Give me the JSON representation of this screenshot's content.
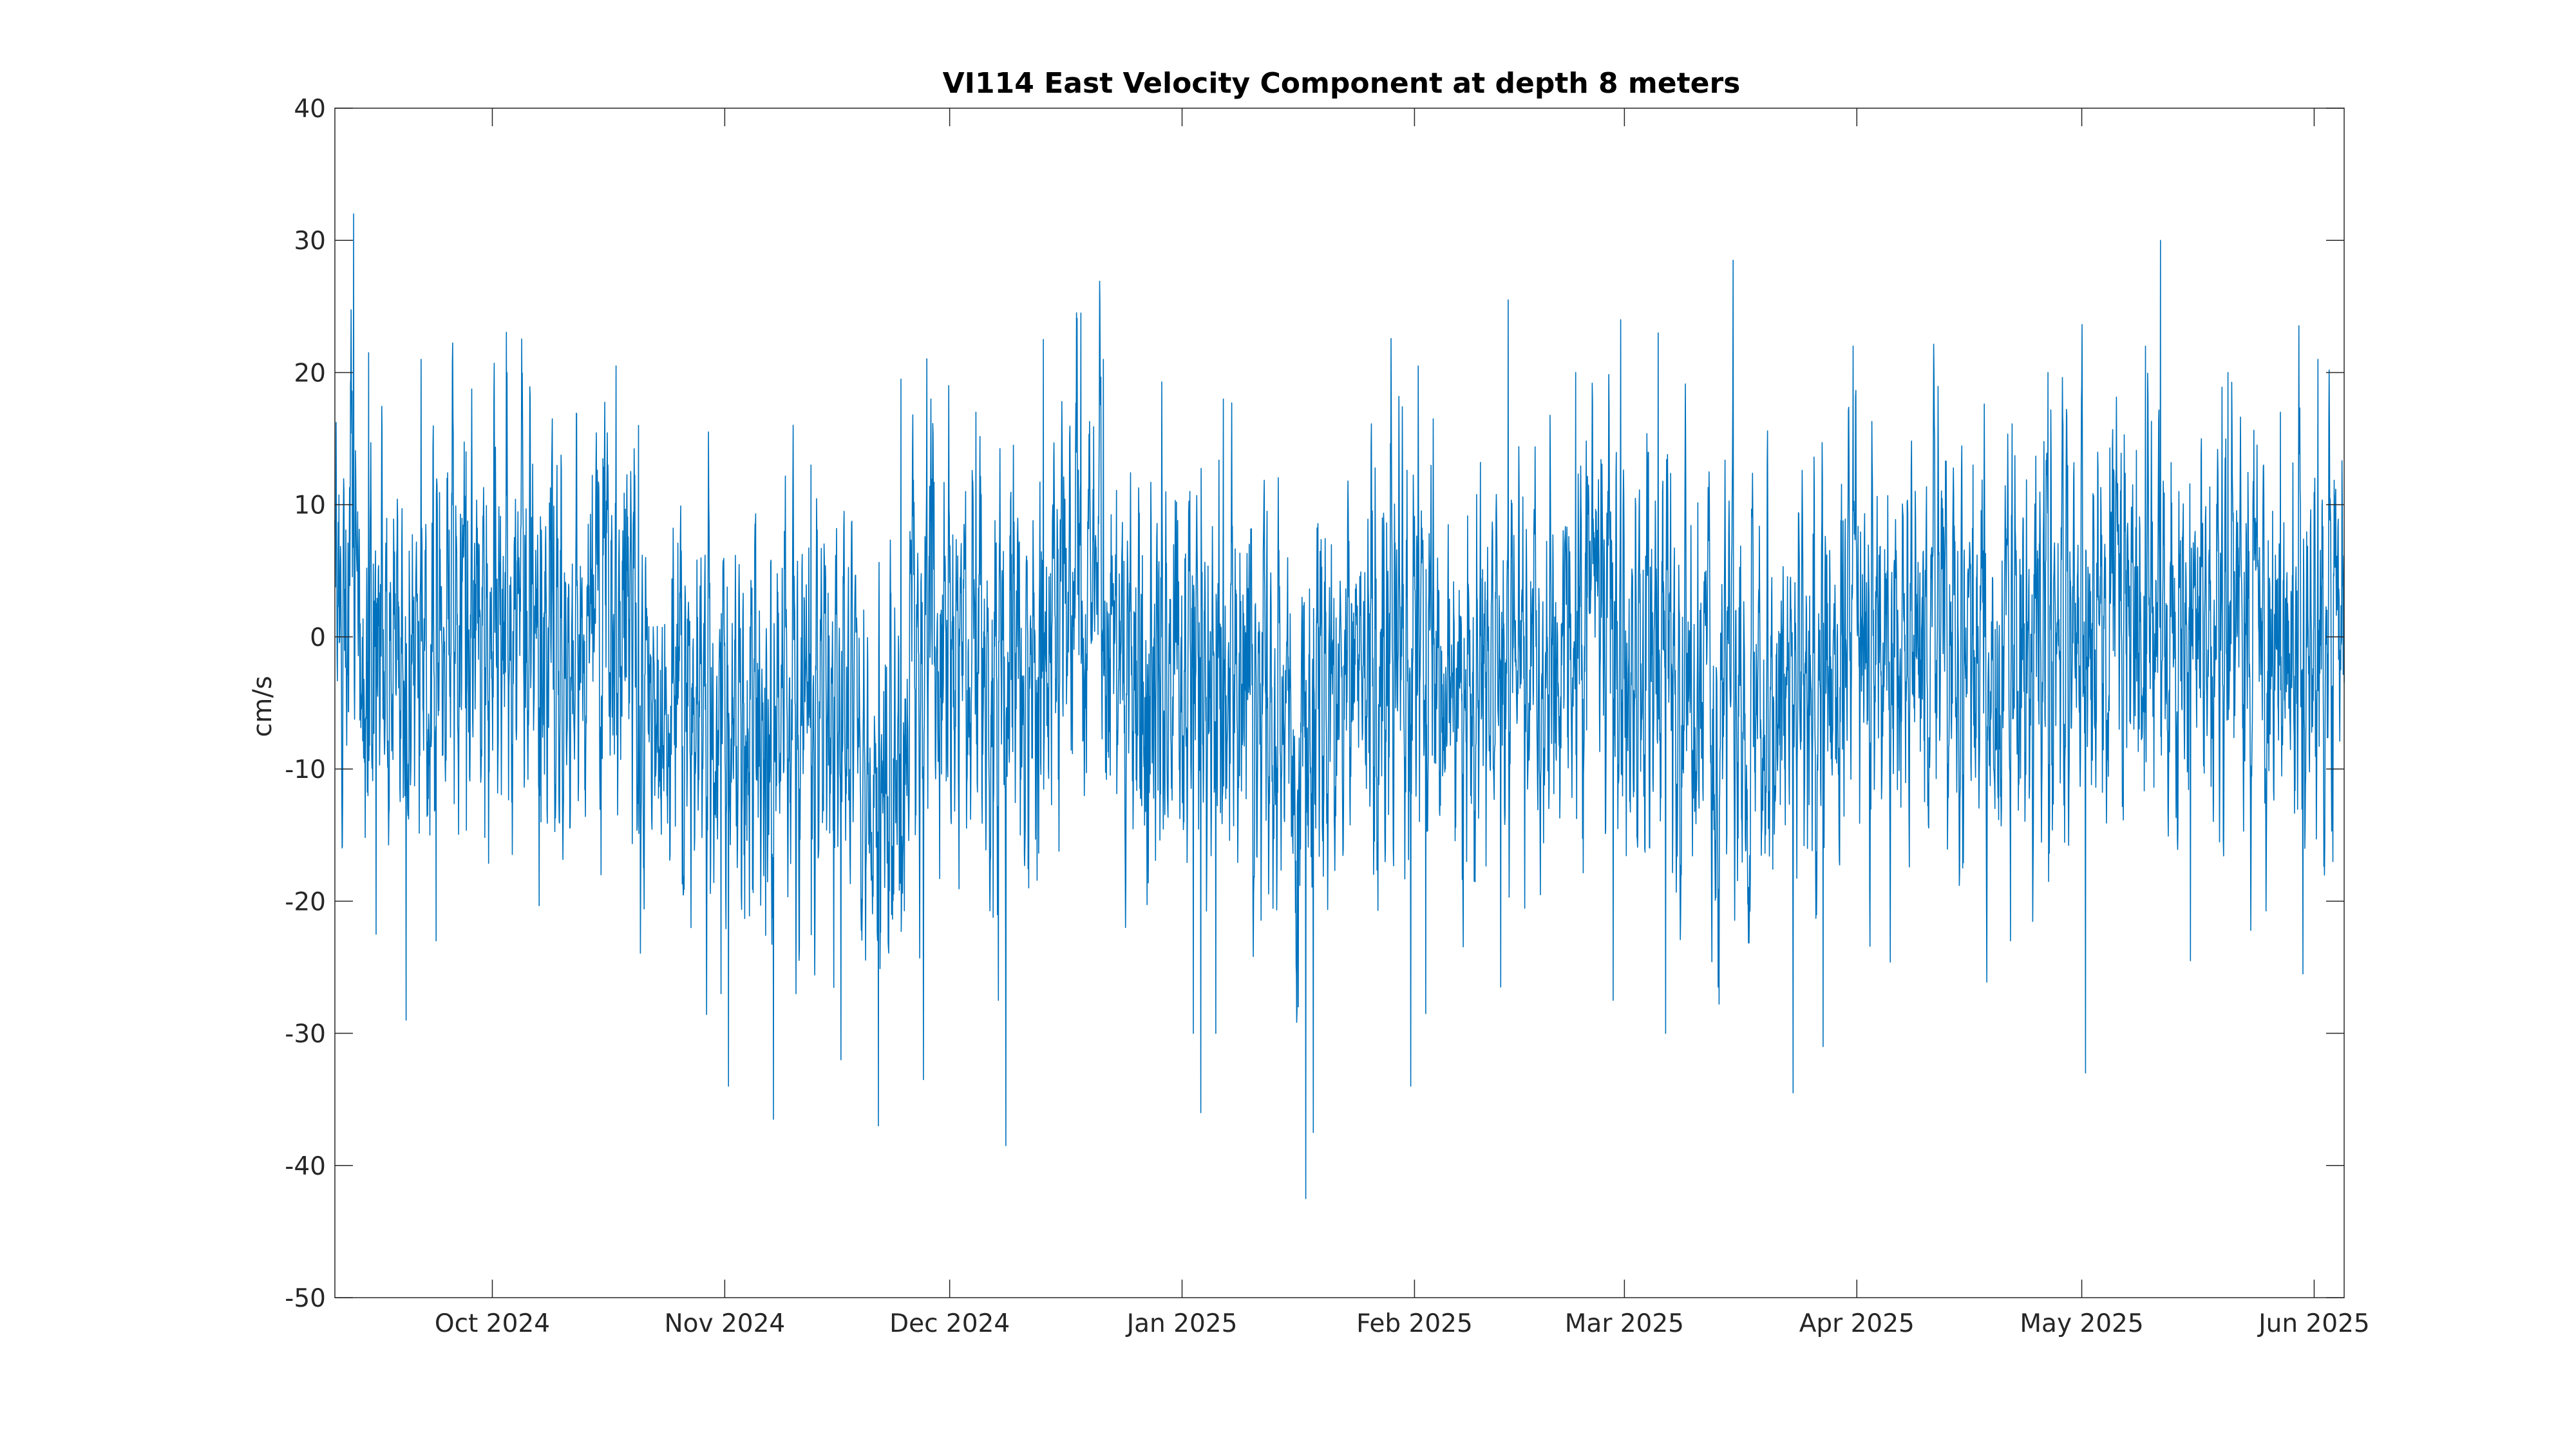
{
  "chart_data": {
    "type": "line",
    "title": "VI114 East Velocity Component at depth 8 meters",
    "xlabel": "",
    "ylabel": "cm/s",
    "xlim": [
      "2024-09-10",
      "2025-06-05"
    ],
    "ylim": [
      -50,
      40
    ],
    "grid": false,
    "legend": "none",
    "x_ticks": [
      {
        "date": "2024-10-01",
        "label": "Oct 2024"
      },
      {
        "date": "2024-11-01",
        "label": "Nov 2024"
      },
      {
        "date": "2024-12-01",
        "label": "Dec 2024"
      },
      {
        "date": "2025-01-01",
        "label": "Jan 2025"
      },
      {
        "date": "2025-02-01",
        "label": "Feb 2025"
      },
      {
        "date": "2025-03-01",
        "label": "Mar 2025"
      },
      {
        "date": "2025-04-01",
        "label": "Apr 2025"
      },
      {
        "date": "2025-05-01",
        "label": "May 2025"
      },
      {
        "date": "2025-06-01",
        "label": "Jun 2025"
      }
    ],
    "y_ticks": [
      {
        "value": 40,
        "label": "40"
      },
      {
        "value": 30,
        "label": "30"
      },
      {
        "value": 20,
        "label": "20"
      },
      {
        "value": 10,
        "label": "10"
      },
      {
        "value": 0,
        "label": "0"
      },
      {
        "value": -10,
        "label": "-10"
      },
      {
        "value": -20,
        "label": "-20"
      },
      {
        "value": -30,
        "label": "-30"
      },
      {
        "value": -40,
        "label": "-40"
      },
      {
        "value": -50,
        "label": "-50"
      }
    ],
    "series": [
      {
        "color": "#0072BD",
        "sampling": "hourly",
        "x_start": "2024-09-10T00:00",
        "x_end": "2025-06-05T00:00",
        "low_frequency_mean": [
          {
            "x": "2024-09-10",
            "y": 3
          },
          {
            "x": "2024-09-14",
            "y": -3
          },
          {
            "x": "2024-09-20",
            "y": -4
          },
          {
            "x": "2024-09-25",
            "y": -2
          },
          {
            "x": "2024-10-01",
            "y": 3
          },
          {
            "x": "2024-10-07",
            "y": 1
          },
          {
            "x": "2024-10-12",
            "y": -4
          },
          {
            "x": "2024-10-15",
            "y": 3
          },
          {
            "x": "2024-10-20",
            "y": -3
          },
          {
            "x": "2024-10-25",
            "y": -6
          },
          {
            "x": "2024-11-01",
            "y": -8
          },
          {
            "x": "2024-11-07",
            "y": -6
          },
          {
            "x": "2024-11-12",
            "y": -6
          },
          {
            "x": "2024-11-16",
            "y": -3
          },
          {
            "x": "2024-11-20",
            "y": -9
          },
          {
            "x": "2024-11-25",
            "y": -8
          },
          {
            "x": "2024-11-28",
            "y": 0
          },
          {
            "x": "2024-12-02",
            "y": 2
          },
          {
            "x": "2024-12-07",
            "y": -2
          },
          {
            "x": "2024-12-12",
            "y": -4
          },
          {
            "x": "2024-12-16",
            "y": 4
          },
          {
            "x": "2024-12-20",
            "y": 3
          },
          {
            "x": "2024-12-25",
            "y": -4
          },
          {
            "x": "2025-01-01",
            "y": -5
          },
          {
            "x": "2025-01-06",
            "y": -3
          },
          {
            "x": "2025-01-12",
            "y": -5
          },
          {
            "x": "2025-01-18",
            "y": -6
          },
          {
            "x": "2025-01-24",
            "y": -3
          },
          {
            "x": "2025-02-01",
            "y": -1
          },
          {
            "x": "2025-02-07",
            "y": -5
          },
          {
            "x": "2025-02-14",
            "y": -4
          },
          {
            "x": "2025-02-20",
            "y": -1
          },
          {
            "x": "2025-02-26",
            "y": 3
          },
          {
            "x": "2025-03-03",
            "y": -2
          },
          {
            "x": "2025-03-08",
            "y": -3
          },
          {
            "x": "2025-03-14",
            "y": -5
          },
          {
            "x": "2025-03-20",
            "y": -6
          },
          {
            "x": "2025-03-25",
            "y": -4
          },
          {
            "x": "2025-04-01",
            "y": 0
          },
          {
            "x": "2025-04-07",
            "y": -3
          },
          {
            "x": "2025-04-12",
            "y": 2
          },
          {
            "x": "2025-04-18",
            "y": -1
          },
          {
            "x": "2025-04-25",
            "y": 0
          },
          {
            "x": "2025-05-01",
            "y": -1
          },
          {
            "x": "2025-05-06",
            "y": 3
          },
          {
            "x": "2025-05-10",
            "y": 2
          },
          {
            "x": "2025-05-15",
            "y": -4
          },
          {
            "x": "2025-05-20",
            "y": 2
          },
          {
            "x": "2025-05-26",
            "y": -2
          },
          {
            "x": "2025-06-01",
            "y": 1
          },
          {
            "x": "2025-06-05",
            "y": 2
          }
        ],
        "fluctuation_amplitude_cm_s": 9,
        "peaks": [
          {
            "x": "2024-09-12",
            "y": 32.0
          },
          {
            "x": "2024-09-14",
            "y": 21.5
          },
          {
            "x": "2024-09-21",
            "y": 21.0
          },
          {
            "x": "2024-09-27",
            "y": 14.0
          },
          {
            "x": "2024-10-17",
            "y": 20.5
          },
          {
            "x": "2024-10-20",
            "y": 16.0
          },
          {
            "x": "2024-11-01",
            "y": 12.0
          },
          {
            "x": "2024-11-12",
            "y": 13.0
          },
          {
            "x": "2024-11-24",
            "y": 19.5
          },
          {
            "x": "2024-11-28",
            "y": 18.0
          },
          {
            "x": "2024-12-04",
            "y": 17.0
          },
          {
            "x": "2024-12-09",
            "y": 14.5
          },
          {
            "x": "2024-12-13",
            "y": 22.5
          },
          {
            "x": "2024-12-18",
            "y": 24.5
          },
          {
            "x": "2024-12-21",
            "y": 21.0
          },
          {
            "x": "2025-01-06",
            "y": 18.0
          },
          {
            "x": "2025-02-01",
            "y": 20.5
          },
          {
            "x": "2025-02-03",
            "y": 16.5
          },
          {
            "x": "2025-02-13",
            "y": 25.5
          },
          {
            "x": "2025-02-22",
            "y": 20.0
          },
          {
            "x": "2025-02-27",
            "y": 31.0
          },
          {
            "x": "2025-02-28",
            "y": 24.0
          },
          {
            "x": "2025-03-05",
            "y": 23.0
          },
          {
            "x": "2025-03-15",
            "y": 28.5
          },
          {
            "x": "2025-03-31",
            "y": 22.0
          },
          {
            "x": "2025-04-16",
            "y": 13.0
          },
          {
            "x": "2025-04-26",
            "y": 20.0
          },
          {
            "x": "2025-04-28",
            "y": 16.0
          },
          {
            "x": "2025-05-09",
            "y": 22.0
          },
          {
            "x": "2025-05-11",
            "y": 30.0
          },
          {
            "x": "2025-05-20",
            "y": 20.0
          },
          {
            "x": "2025-05-27",
            "y": 17.0
          },
          {
            "x": "2025-06-01",
            "y": 21.0
          }
        ],
        "troughs": [
          {
            "x": "2024-09-15",
            "y": -22.5
          },
          {
            "x": "2024-09-19",
            "y": -29.0
          },
          {
            "x": "2024-09-23",
            "y": -23.0
          },
          {
            "x": "2024-10-07",
            "y": -14.0
          },
          {
            "x": "2024-10-15",
            "y": -18.0
          },
          {
            "x": "2024-10-27",
            "y": -22.0
          },
          {
            "x": "2024-10-31",
            "y": -27.0
          },
          {
            "x": "2024-11-01",
            "y": -34.0
          },
          {
            "x": "2024-11-07",
            "y": -36.5
          },
          {
            "x": "2024-11-10",
            "y": -27.0
          },
          {
            "x": "2024-11-16",
            "y": -32.0
          },
          {
            "x": "2024-11-21",
            "y": -37.0
          },
          {
            "x": "2024-11-27",
            "y": -33.5
          },
          {
            "x": "2024-12-07",
            "y": -27.5
          },
          {
            "x": "2024-12-08",
            "y": -38.5
          },
          {
            "x": "2025-01-02",
            "y": -30.0
          },
          {
            "x": "2025-01-03",
            "y": -36.0
          },
          {
            "x": "2025-01-05",
            "y": -30.0
          },
          {
            "x": "2025-01-16",
            "y": -28.0
          },
          {
            "x": "2025-01-17",
            "y": -42.5
          },
          {
            "x": "2025-01-18",
            "y": -37.5
          },
          {
            "x": "2025-01-31",
            "y": -34.0
          },
          {
            "x": "2025-02-02",
            "y": -28.5
          },
          {
            "x": "2025-02-12",
            "y": -26.5
          },
          {
            "x": "2025-02-27",
            "y": -27.5
          },
          {
            "x": "2025-03-06",
            "y": -30.0
          },
          {
            "x": "2025-03-13",
            "y": -26.5
          },
          {
            "x": "2025-03-23",
            "y": -34.5
          },
          {
            "x": "2025-03-27",
            "y": -31.0
          },
          {
            "x": "2025-04-21",
            "y": -23.0
          },
          {
            "x": "2025-05-01",
            "y": -33.0
          },
          {
            "x": "2025-05-15",
            "y": -24.5
          },
          {
            "x": "2025-05-30",
            "y": -25.5
          },
          {
            "x": "2025-06-03",
            "y": -17.0
          }
        ]
      }
    ]
  }
}
